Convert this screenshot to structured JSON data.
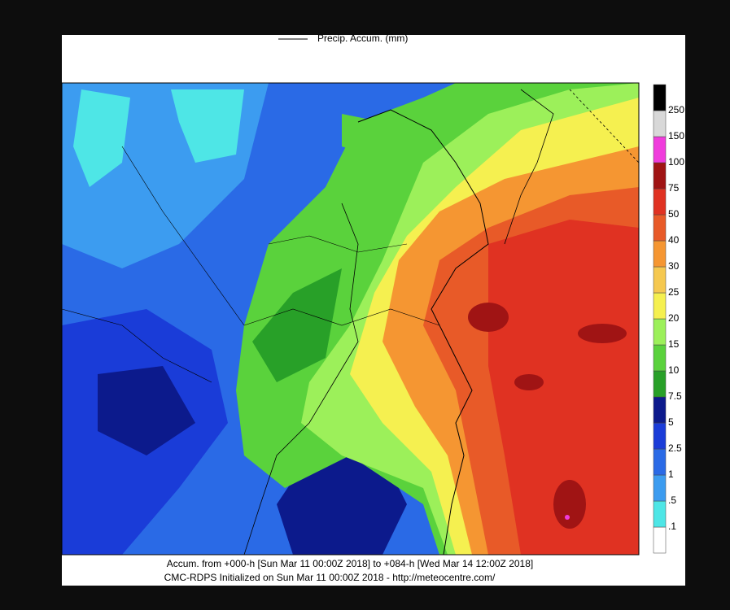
{
  "legend": {
    "title": "Precip. Accum. (mm)",
    "labels": [
      ".1",
      ".5",
      "1",
      "2.5",
      "5",
      "7.5",
      "10",
      "15",
      "20",
      "25",
      "30",
      "40",
      "50",
      "75",
      "100",
      "150",
      "250"
    ],
    "colors": [
      "#ffffff",
      "#4ee6e6",
      "#3c9cf0",
      "#2a6ae6",
      "#1a3cd8",
      "#0c1a8c",
      "#28a028",
      "#5ad23c",
      "#9cf05a",
      "#f5f050",
      "#f5c850",
      "#f59632",
      "#e85a28",
      "#e03222",
      "#a01414",
      "#f03cdc",
      "#d8d8d8",
      "#000000"
    ]
  },
  "footer": {
    "line1": "Accum. from +000-h [Sun Mar 11 00:00Z 2018] to +084-h [Wed Mar 14 12:00Z 2018]",
    "line2": "CMC-RDPS Initialized on Sun Mar 11 00:00Z 2018 - http://meteocentre.com/"
  }
}
